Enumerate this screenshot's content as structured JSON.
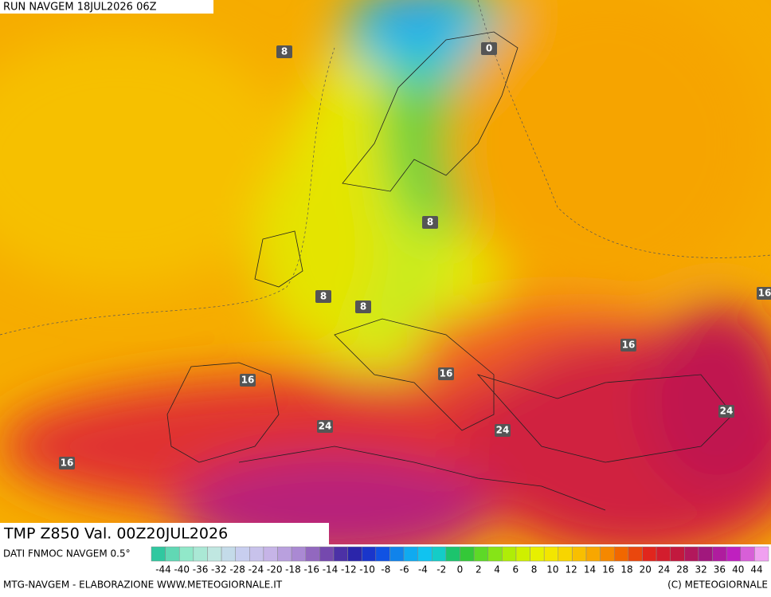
{
  "header": {
    "run": "RUN NAVGEM 18JUL2026 06Z"
  },
  "map": {
    "title": "TMP Z850 Val. 00Z20JUL2026",
    "contour_labels": [
      8,
      0,
      8,
      8,
      8,
      16,
      16,
      16,
      24,
      24,
      24,
      16,
      16
    ]
  },
  "legend": {
    "source": "DATI FNMOC NAVGEM 0.5°",
    "scale": [
      -44,
      -40,
      -36,
      -32,
      -28,
      -24,
      -20,
      -18,
      -16,
      -14,
      -12,
      -10,
      -8,
      -6,
      -4,
      -2,
      0,
      2,
      4,
      6,
      8,
      10,
      12,
      14,
      16,
      18,
      20,
      24,
      28,
      32,
      36,
      40,
      44
    ]
  },
  "footer": {
    "left": "MTG-NAVGEM - ELABORAZIONE WWW.METEOGIORNALE.IT",
    "right": "(C) METEOGIORNALE"
  }
}
